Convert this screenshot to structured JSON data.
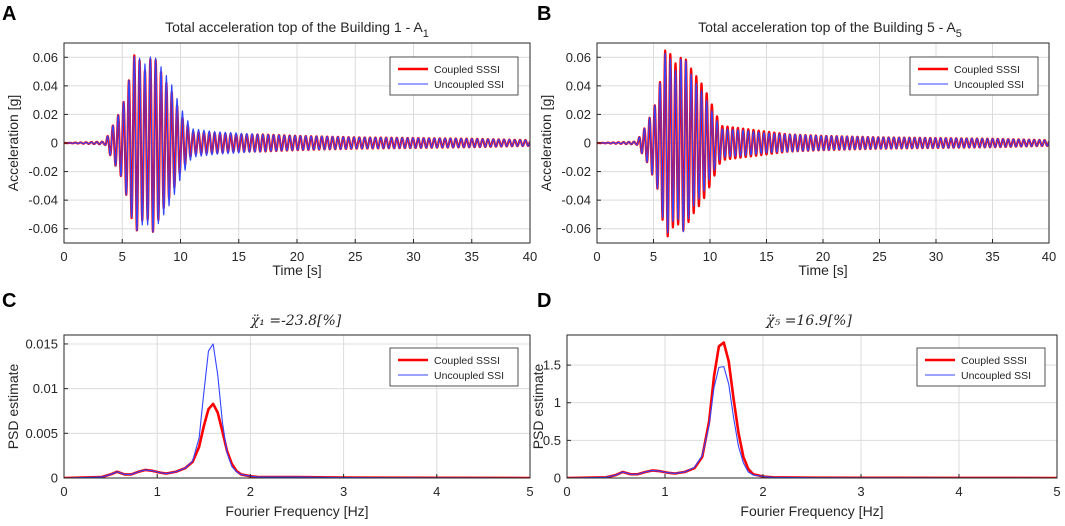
{
  "panels": [
    {
      "letter": "A",
      "title": "Total acceleration top of the Building 1 - A",
      "title_sub": "1"
    },
    {
      "letter": "B",
      "title": "Total acceleration top of the Building 5 - A",
      "title_sub": "5"
    },
    {
      "letter": "C",
      "title": "χ̈₁ =-23.8[%]",
      "title_sub": ""
    },
    {
      "letter": "D",
      "title": "χ̈₅ =16.9[%]",
      "title_sub": ""
    }
  ],
  "legend": {
    "coupled": "Coupled SSSI",
    "uncoupled": "Uncoupled SSI"
  },
  "colors": {
    "coupled": "#ff0000",
    "uncoupled": "#3344ff",
    "grid": "#dcdcdc",
    "axis": "#262626"
  },
  "chart_data": [
    {
      "id": "A",
      "type": "line",
      "title": "Total acceleration top of the Building 1 - A1",
      "xlabel": "Time [s]",
      "ylabel": "Acceleration [g]",
      "xlim": [
        0,
        40
      ],
      "ylim": [
        -0.07,
        0.07
      ],
      "xticks": [
        0,
        5,
        10,
        15,
        20,
        25,
        30,
        35,
        40
      ],
      "xtick_labels": [
        "0",
        "5",
        "10",
        "15",
        "20",
        "25",
        "30",
        "35",
        "40"
      ],
      "yticks": [
        -0.06,
        -0.04,
        -0.02,
        0,
        0.02,
        0.04,
        0.06
      ],
      "ytick_labels": [
        "-0.06",
        "-0.04",
        "-0.02",
        "0",
        "0.02",
        "0.04",
        "0.06"
      ],
      "series": [
        {
          "name": "Coupled SSSI",
          "kind": "waveform",
          "cycle_s": 0.46,
          "peaks": [
            [
              0,
              0
            ],
            [
              3.5,
              0.001
            ],
            [
              4.3,
              0.014
            ],
            [
              5.0,
              0.025
            ],
            [
              5.6,
              0.045
            ],
            [
              6.1,
              -0.064
            ],
            [
              7.0,
              0.05
            ],
            [
              7.6,
              0.063
            ],
            [
              8.6,
              0.045
            ],
            [
              9.3,
              0.035
            ],
            [
              10.0,
              0.02
            ],
            [
              11.0,
              0.008
            ],
            [
              13.0,
              0.007
            ],
            [
              15.0,
              0.006
            ],
            [
              17.0,
              0.006
            ],
            [
              20.0,
              0.005
            ],
            [
              25.0,
              0.004
            ],
            [
              30.0,
              0.0035
            ],
            [
              35.0,
              0.003
            ],
            [
              40.0,
              0.002
            ]
          ]
        },
        {
          "name": "Uncoupled SSI",
          "kind": "waveform",
          "cycle_s": 0.46,
          "peaks": [
            [
              0,
              0
            ],
            [
              3.5,
              0.001
            ],
            [
              4.3,
              0.014
            ],
            [
              5.0,
              0.025
            ],
            [
              5.6,
              0.045
            ],
            [
              6.1,
              -0.063
            ],
            [
              7.0,
              0.055
            ],
            [
              7.6,
              0.063
            ],
            [
              8.6,
              0.05
            ],
            [
              9.3,
              0.04
            ],
            [
              10.0,
              0.025
            ],
            [
              11.0,
              0.01
            ],
            [
              13.0,
              0.008
            ],
            [
              15.0,
              0.007
            ],
            [
              17.0,
              0.006
            ],
            [
              20.0,
              0.005
            ],
            [
              25.0,
              0.004
            ],
            [
              30.0,
              0.0035
            ],
            [
              35.0,
              0.003
            ],
            [
              40.0,
              0.002
            ]
          ]
        }
      ]
    },
    {
      "id": "B",
      "type": "line",
      "title": "Total acceleration top of the Building 5 - A5",
      "xlabel": "Time [s]",
      "ylabel": "Acceleration [g]",
      "xlim": [
        0,
        40
      ],
      "ylim": [
        -0.07,
        0.07
      ],
      "xticks": [
        0,
        5,
        10,
        15,
        20,
        25,
        30,
        35,
        40
      ],
      "xtick_labels": [
        "0",
        "5",
        "10",
        "15",
        "20",
        "25",
        "30",
        "35",
        "40"
      ],
      "yticks": [
        -0.06,
        -0.04,
        -0.02,
        0,
        0.02,
        0.04,
        0.06
      ],
      "ytick_labels": [
        "-0.06",
        "-0.04",
        "-0.02",
        "0",
        "0.02",
        "0.04",
        "0.06"
      ],
      "series": [
        {
          "name": "Coupled SSSI",
          "kind": "waveform",
          "cycle_s": 0.46,
          "peaks": [
            [
              0,
              0
            ],
            [
              3.5,
              0.001
            ],
            [
              4.4,
              0.013
            ],
            [
              5.3,
              0.03
            ],
            [
              6.1,
              -0.068
            ],
            [
              7.0,
              0.055
            ],
            [
              7.6,
              0.062
            ],
            [
              8.5,
              0.05
            ],
            [
              9.4,
              0.04
            ],
            [
              10.0,
              0.03
            ],
            [
              11.0,
              0.012
            ],
            [
              13.0,
              0.01
            ],
            [
              15.0,
              0.008
            ],
            [
              17.0,
              0.006
            ],
            [
              20.0,
              0.005
            ],
            [
              25.0,
              0.004
            ],
            [
              30.0,
              0.0035
            ],
            [
              35.0,
              0.003
            ],
            [
              40.0,
              0.002
            ]
          ]
        },
        {
          "name": "Uncoupled SSI",
          "kind": "waveform",
          "cycle_s": 0.46,
          "peaks": [
            [
              0,
              0
            ],
            [
              3.5,
              0.001
            ],
            [
              4.4,
              0.013
            ],
            [
              5.3,
              0.03
            ],
            [
              6.1,
              -0.066
            ],
            [
              7.0,
              0.05
            ],
            [
              7.6,
              0.063
            ],
            [
              8.5,
              0.045
            ],
            [
              9.4,
              0.035
            ],
            [
              10.0,
              0.025
            ],
            [
              11.0,
              0.01
            ],
            [
              13.0,
              0.009
            ],
            [
              15.0,
              0.007
            ],
            [
              17.0,
              0.006
            ],
            [
              20.0,
              0.005
            ],
            [
              25.0,
              0.004
            ],
            [
              30.0,
              0.0035
            ],
            [
              35.0,
              0.003
            ],
            [
              40.0,
              0.002
            ]
          ]
        }
      ]
    },
    {
      "id": "C",
      "type": "line",
      "title": "χ̈₁ =-23.8[%]",
      "xlabel": "Fourier Frequency [Hz]",
      "ylabel": "PSD estimate",
      "xlim": [
        0,
        5
      ],
      "ylim": [
        0,
        0.016
      ],
      "xticks": [
        0,
        1,
        2,
        3,
        4,
        5
      ],
      "xtick_labels": [
        "0",
        "1",
        "2",
        "3",
        "4",
        "5"
      ],
      "yticks": [
        0,
        0.005,
        0.01,
        0.015
      ],
      "ytick_labels": [
        "0",
        "0.005",
        "0.01",
        "0.015"
      ],
      "series": [
        {
          "name": "Coupled SSSI",
          "x": [
            0,
            0.4,
            0.5,
            0.57,
            0.65,
            0.72,
            0.8,
            0.87,
            0.95,
            1.03,
            1.1,
            1.2,
            1.3,
            1.38,
            1.45,
            1.5,
            1.55,
            1.6,
            1.65,
            1.7,
            1.75,
            1.8,
            1.85,
            1.9,
            2.0,
            2.1,
            2.5,
            3.0,
            4.0,
            5.0
          ],
          "y": [
            0,
            0.0001,
            0.0004,
            0.0007,
            0.0004,
            0.0004,
            0.0007,
            0.0009,
            0.0008,
            0.0006,
            0.0005,
            0.0007,
            0.0011,
            0.0018,
            0.0035,
            0.0058,
            0.0077,
            0.0083,
            0.0073,
            0.0052,
            0.003,
            0.0016,
            0.0008,
            0.0004,
            0.0002,
            0.0001,
            0.0001,
            5e-05,
            2e-05,
            0
          ]
        },
        {
          "name": "Uncoupled SSI",
          "x": [
            0,
            0.4,
            0.5,
            0.57,
            0.65,
            0.72,
            0.8,
            0.87,
            0.95,
            1.03,
            1.1,
            1.2,
            1.3,
            1.38,
            1.45,
            1.5,
            1.55,
            1.6,
            1.65,
            1.7,
            1.75,
            1.8,
            1.85,
            1.9,
            2.0,
            2.1,
            2.5,
            3.0,
            4.0,
            5.0
          ],
          "y": [
            0,
            0.0001,
            0.0004,
            0.0007,
            0.0004,
            0.0004,
            0.0007,
            0.0009,
            0.0008,
            0.0006,
            0.0005,
            0.0007,
            0.0011,
            0.0019,
            0.0045,
            0.0095,
            0.0142,
            0.015,
            0.0115,
            0.0062,
            0.0028,
            0.0013,
            0.0007,
            0.0004,
            0.0002,
            0.0001,
            0.0001,
            5e-05,
            2e-05,
            0
          ]
        }
      ]
    },
    {
      "id": "D",
      "type": "line",
      "title": "χ̈₅ =16.9[%]",
      "xlabel": "Fourier Frequency [Hz]",
      "ylabel": "PSD estimate",
      "xlim": [
        0,
        5
      ],
      "ylim": [
        0,
        1.9
      ],
      "xticks": [
        0,
        1,
        2,
        3,
        4,
        5
      ],
      "xtick_labels": [
        "0",
        "1",
        "2",
        "3",
        "4",
        "5"
      ],
      "yticks": [
        0,
        0.5,
        1,
        1.5
      ],
      "ytick_labels": [
        "0",
        "0.5",
        "1",
        "1.5"
      ],
      "series": [
        {
          "name": "Coupled SSSI",
          "x": [
            0,
            0.4,
            0.5,
            0.57,
            0.65,
            0.72,
            0.8,
            0.87,
            0.95,
            1.03,
            1.1,
            1.2,
            1.3,
            1.38,
            1.45,
            1.5,
            1.55,
            1.6,
            1.65,
            1.7,
            1.75,
            1.8,
            1.85,
            1.9,
            2.0,
            2.1,
            2.5,
            3.0,
            4.0,
            5.0
          ],
          "y": [
            0,
            0.01,
            0.04,
            0.08,
            0.05,
            0.05,
            0.08,
            0.1,
            0.09,
            0.07,
            0.06,
            0.08,
            0.13,
            0.28,
            0.75,
            1.35,
            1.75,
            1.8,
            1.55,
            1.05,
            0.6,
            0.28,
            0.12,
            0.05,
            0.02,
            0.01,
            0.005,
            0.003,
            0.001,
            0
          ]
        },
        {
          "name": "Uncoupled SSI",
          "x": [
            0,
            0.4,
            0.5,
            0.57,
            0.65,
            0.72,
            0.8,
            0.87,
            0.95,
            1.03,
            1.1,
            1.2,
            1.3,
            1.38,
            1.45,
            1.5,
            1.55,
            1.6,
            1.65,
            1.7,
            1.75,
            1.8,
            1.85,
            1.9,
            2.0,
            2.1,
            2.5,
            3.0,
            4.0,
            5.0
          ],
          "y": [
            0,
            0.01,
            0.04,
            0.08,
            0.05,
            0.05,
            0.08,
            0.1,
            0.09,
            0.07,
            0.06,
            0.08,
            0.14,
            0.3,
            0.7,
            1.2,
            1.47,
            1.48,
            1.25,
            0.8,
            0.42,
            0.2,
            0.08,
            0.04,
            0.02,
            0.01,
            0.005,
            0.003,
            0.001,
            0
          ]
        }
      ]
    }
  ]
}
